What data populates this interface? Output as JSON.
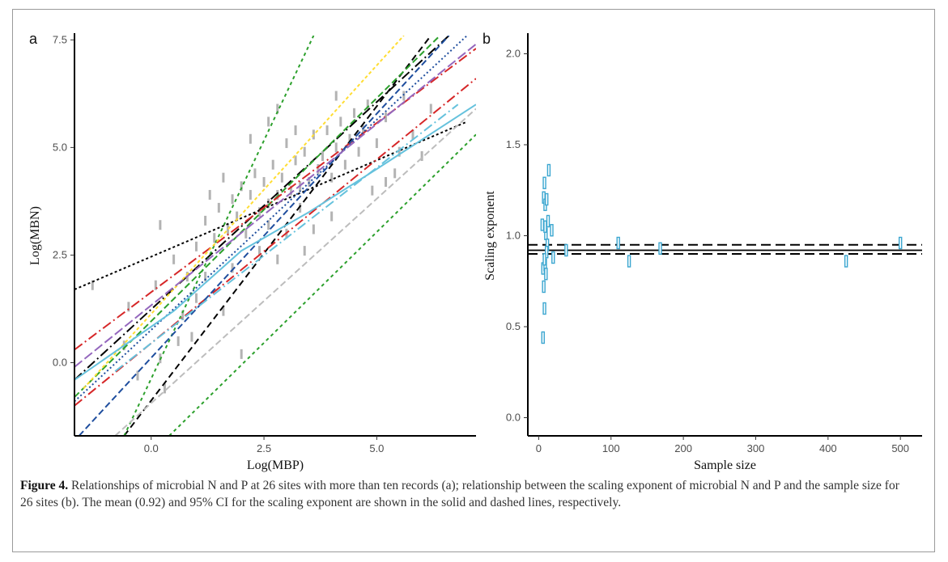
{
  "caption": {
    "label": "Figure 4.",
    "text": "Relationships of microbial N and P at 26 sites with more than ten records (a); relationship between the scaling exponent of microbial N and P and the sample size for 26 sites (b). The mean (0.92) and 95% CI for the scaling exponent are shown in the solid and dashed lines, respectively."
  },
  "chart_data": [
    {
      "panel": "a",
      "type": "scatter",
      "xlabel": "Log(MBP)",
      "ylabel": "Log(MBN)",
      "xlim": [
        -1.7,
        7.2
      ],
      "ylim": [
        -1.7,
        7.6
      ],
      "xticks": [
        "0.0",
        "2.5",
        "5.0"
      ],
      "yticks": [
        "0.0",
        "2.5",
        "5.0",
        "7.5"
      ],
      "points": [
        [
          -1.3,
          1.8
        ],
        [
          -0.5,
          1.3
        ],
        [
          0.1,
          1.8
        ],
        [
          0.5,
          2.4
        ],
        [
          0.8,
          2.0
        ],
        [
          1.0,
          2.7
        ],
        [
          1.2,
          3.3
        ],
        [
          1.4,
          2.9
        ],
        [
          1.5,
          3.6
        ],
        [
          1.7,
          3.1
        ],
        [
          1.8,
          3.8
        ],
        [
          1.9,
          3.4
        ],
        [
          2.0,
          4.1
        ],
        [
          2.1,
          3.0
        ],
        [
          2.2,
          3.9
        ],
        [
          2.3,
          4.4
        ],
        [
          2.4,
          3.5
        ],
        [
          2.5,
          4.2
        ],
        [
          2.6,
          3.7
        ],
        [
          2.7,
          4.6
        ],
        [
          2.8,
          3.9
        ],
        [
          2.9,
          4.3
        ],
        [
          3.0,
          5.1
        ],
        [
          3.1,
          4.0
        ],
        [
          3.2,
          4.7
        ],
        [
          3.3,
          3.6
        ],
        [
          3.4,
          4.9
        ],
        [
          3.5,
          4.2
        ],
        [
          3.6,
          5.3
        ],
        [
          3.7,
          4.5
        ],
        [
          3.8,
          4.8
        ],
        [
          3.9,
          5.4
        ],
        [
          4.0,
          4.3
        ],
        [
          4.1,
          5.0
        ],
        [
          4.2,
          5.6
        ],
        [
          4.3,
          4.6
        ],
        [
          4.4,
          5.2
        ],
        [
          4.5,
          5.8
        ],
        [
          4.6,
          4.9
        ],
        [
          4.7,
          5.4
        ],
        [
          4.8,
          6.0
        ],
        [
          5.0,
          5.1
        ],
        [
          5.2,
          5.7
        ],
        [
          5.4,
          4.4
        ],
        [
          5.6,
          6.2
        ],
        [
          5.8,
          5.3
        ],
        [
          6.0,
          4.8
        ],
        [
          6.2,
          5.9
        ],
        [
          1.6,
          4.3
        ],
        [
          2.2,
          5.2
        ],
        [
          2.6,
          5.6
        ],
        [
          3.2,
          5.4
        ],
        [
          3.0,
          3.0
        ],
        [
          2.4,
          2.6
        ],
        [
          1.8,
          2.2
        ],
        [
          0.9,
          0.6
        ],
        [
          0.6,
          0.5
        ],
        [
          1.6,
          1.2
        ],
        [
          2.0,
          0.2
        ],
        [
          0.3,
          -0.6
        ],
        [
          3.4,
          2.6
        ],
        [
          4.0,
          3.4
        ],
        [
          3.6,
          3.1
        ],
        [
          2.8,
          2.4
        ],
        [
          0.2,
          0.1
        ],
        [
          -0.3,
          -0.3
        ],
        [
          -0.6,
          0.4
        ],
        [
          4.9,
          4.0
        ],
        [
          5.2,
          4.2
        ],
        [
          5.5,
          4.9
        ],
        [
          1.2,
          2.0
        ],
        [
          1.0,
          1.5
        ],
        [
          0.7,
          1.1
        ],
        [
          2.6,
          3.2
        ],
        [
          3.3,
          4.1
        ],
        [
          1.3,
          3.9
        ],
        [
          0.2,
          3.2
        ],
        [
          2.8,
          5.9
        ],
        [
          4.1,
          6.2
        ]
      ],
      "series": [
        {
          "color": "#000000",
          "dash": "3,3",
          "x": [
            -1.7,
            7.0
          ],
          "y": [
            1.7,
            5.6
          ]
        },
        {
          "color": "#000000",
          "dash": "8,5",
          "x": [
            -0.6,
            6.2
          ],
          "y": [
            -1.7,
            7.6
          ]
        },
        {
          "color": "#000000",
          "dash": "12,4,2,4",
          "x": [
            -1.7,
            6.6
          ],
          "y": [
            -0.4,
            7.6
          ]
        },
        {
          "color": "#2ca02c",
          "dash": "4,4",
          "x": [
            -0.6,
            3.6
          ],
          "y": [
            -1.7,
            7.6
          ]
        },
        {
          "color": "#2ca02c",
          "dash": "4,4",
          "x": [
            0.4,
            7.2
          ],
          "y": [
            -1.7,
            5.3
          ]
        },
        {
          "color": "#2ca02c",
          "dash": "8,4",
          "x": [
            -1.7,
            6.4
          ],
          "y": [
            -0.8,
            7.6
          ]
        },
        {
          "color": "#d62728",
          "dash": "12,4,2,4",
          "x": [
            -1.7,
            7.2
          ],
          "y": [
            0.3,
            7.3
          ]
        },
        {
          "color": "#d62728",
          "dash": "12,4,2,4",
          "x": [
            -1.7,
            7.2
          ],
          "y": [
            -1.0,
            6.6
          ]
        },
        {
          "color": "#1f4e9e",
          "dash": "8,4",
          "x": [
            -1.6,
            6.6
          ],
          "y": [
            -1.7,
            7.6
          ]
        },
        {
          "color": "#1f4e9e",
          "dash": "2,3",
          "x": [
            -1.7,
            7.0
          ],
          "y": [
            -0.9,
            7.6
          ]
        },
        {
          "color": "#ffdd33",
          "dash": "4,3",
          "x": [
            -1.5,
            5.6
          ],
          "y": [
            -0.6,
            7.6
          ]
        },
        {
          "color": "#9467bd",
          "dash": "12,4",
          "x": [
            -1.7,
            7.2
          ],
          "y": [
            -0.1,
            7.4
          ]
        },
        {
          "color": "#bdbdbd",
          "dash": "8,4",
          "x": [
            -0.8,
            7.2
          ],
          "y": [
            -1.7,
            5.9
          ]
        },
        {
          "color": "#66c2dd",
          "dash": "12,4,2,4",
          "x": [
            -0.8,
            6.8
          ],
          "y": [
            -0.2,
            6.0
          ]
        },
        {
          "color": "#66c2dd",
          "dash": "",
          "x": [
            -1.7,
            0.5,
            2.0,
            3.5,
            5.0,
            7.2
          ],
          "y": [
            -0.4,
            1.2,
            2.6,
            3.5,
            4.5,
            6.0
          ]
        }
      ]
    },
    {
      "panel": "b",
      "type": "scatter",
      "xlabel": "Sample size",
      "ylabel": "Scaling exponent",
      "xlim": [
        -15,
        530
      ],
      "ylim": [
        -0.1,
        2.1
      ],
      "xticks": [
        "0",
        "100",
        "200",
        "300",
        "400",
        "500"
      ],
      "yticks": [
        "0.0",
        "0.5",
        "1.0",
        "1.5",
        "2.0"
      ],
      "mean": 0.92,
      "ci": [
        0.9,
        0.95
      ],
      "points": [
        [
          5,
          1.06
        ],
        [
          7,
          1.21
        ],
        [
          8,
          1.29
        ],
        [
          9,
          1.17
        ],
        [
          10,
          1.01
        ],
        [
          11,
          1.2
        ],
        [
          12,
          0.95
        ],
        [
          13,
          1.08
        ],
        [
          14,
          1.36
        ],
        [
          18,
          1.03
        ],
        [
          6,
          0.82
        ],
        [
          7,
          0.72
        ],
        [
          8,
          0.6
        ],
        [
          9,
          0.84
        ],
        [
          10,
          0.79
        ],
        [
          11,
          0.91
        ],
        [
          6,
          0.44
        ],
        [
          8,
          0.87
        ],
        [
          20,
          0.88
        ],
        [
          38,
          0.92
        ],
        [
          110,
          0.96
        ],
        [
          125,
          0.86
        ],
        [
          168,
          0.93
        ],
        [
          425,
          0.86
        ],
        [
          500,
          0.96
        ],
        [
          9,
          1.05
        ]
      ]
    }
  ]
}
